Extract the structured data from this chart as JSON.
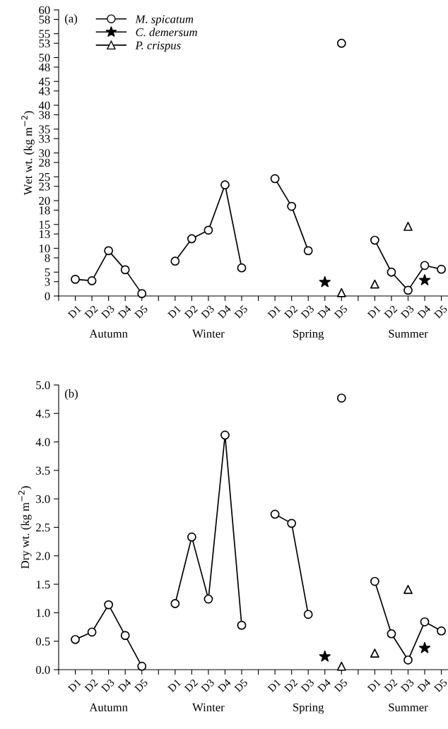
{
  "chart_data": [
    {
      "type": "line",
      "ylabel": "Wet wt. (kg m$^{−2}$)",
      "categories": [
        null,
        "D1",
        "D2",
        "D3",
        "D4",
        "D5",
        null,
        "D1",
        "D2",
        "D3",
        "D4",
        "D5",
        null,
        "D1",
        "D2",
        "D3",
        "D4",
        "D5",
        null,
        "D1",
        "D2",
        "D3",
        "D4",
        "D5"
      ],
      "series": [
        {
          "name": "M. spicatum",
          "color": "#000000",
          "marker": "circle",
          "values": [
            null,
            3.5,
            3.2,
            9.5,
            5.5,
            0.5,
            null,
            7.3,
            12,
            13.8,
            23.3,
            5.9,
            null,
            24.6,
            18.8,
            9.5,
            null,
            53,
            null,
            11.7,
            5,
            1.2,
            6.4,
            5.6
          ]
        },
        {
          "name": "C. demersum",
          "type": "scatter",
          "color": "#000000",
          "marker": "star",
          "values": [
            null,
            null,
            null,
            null,
            null,
            null,
            null,
            null,
            null,
            null,
            null,
            null,
            null,
            null,
            null,
            null,
            2.9,
            null,
            null,
            null,
            null,
            null,
            3.3,
            null
          ]
        },
        {
          "name": "P. crispus",
          "type": "scatter",
          "color": "#000000",
          "marker": "triangle",
          "values": [
            null,
            null,
            null,
            null,
            null,
            null,
            null,
            null,
            null,
            null,
            null,
            null,
            null,
            null,
            null,
            null,
            null,
            0.7,
            null,
            2.5,
            null,
            14.6,
            null,
            null
          ]
        }
      ],
      "ylim": [
        0,
        60
      ],
      "yticks": [
        0,
        3,
        5,
        8,
        10,
        13,
        15,
        18,
        20,
        23,
        25,
        28,
        30,
        33,
        35,
        38,
        40,
        43,
        45,
        48,
        50,
        53,
        55,
        58,
        60
      ],
      "legend": "top left",
      "grid": false,
      "annotations": [
        "(a)",
        "Autumn",
        "Winter",
        "Spring",
        "Summer"
      ]
    },
    {
      "type": "line",
      "ylabel": "Dry wt. (kg m$^{−2}$)",
      "categories": [
        null,
        "D1",
        "D2",
        "D3",
        "D4",
        "D5",
        null,
        "D1",
        "D2",
        "D3",
        "D4",
        "D5",
        null,
        "D1",
        "D2",
        "D3",
        "D4",
        "D5",
        null,
        "D1",
        "D2",
        "D3",
        "D4",
        "D5"
      ],
      "series": [
        {
          "color": "#000000",
          "marker": "circle",
          "values": [
            null,
            0.53,
            0.66,
            1.14,
            0.6,
            0.06,
            null,
            1.16,
            2.33,
            1.24,
            4.12,
            0.78,
            null,
            2.73,
            2.57,
            0.97,
            null,
            4.77,
            null,
            1.55,
            0.63,
            0.17,
            0.84,
            0.68
          ]
        },
        {
          "type": "scatter",
          "color": "#000000",
          "marker": "star",
          "values": [
            null,
            null,
            null,
            null,
            null,
            null,
            null,
            null,
            null,
            null,
            null,
            null,
            null,
            null,
            null,
            null,
            0.23,
            null,
            null,
            null,
            null,
            null,
            0.38,
            null
          ]
        },
        {
          "type": "scatter",
          "color": "#000000",
          "marker": "triangle",
          "values": [
            null,
            null,
            null,
            null,
            null,
            null,
            null,
            null,
            null,
            null,
            null,
            null,
            null,
            null,
            null,
            null,
            null,
            0.06,
            null,
            0.29,
            null,
            1.41,
            null,
            null
          ]
        }
      ],
      "ylim": [
        0,
        5
      ],
      "yticks": [
        {
          "value": 0,
          "label": "0.0"
        },
        {
          "value": 0.5,
          "label": "0.5"
        },
        {
          "value": 1,
          "label": "1.0"
        },
        {
          "value": 1.5,
          "label": "1.5"
        },
        {
          "value": 2,
          "label": "2.0"
        },
        {
          "value": 2.5,
          "label": "2.5"
        },
        {
          "value": 3,
          "label": "3.0"
        },
        {
          "value": 3.5,
          "label": "3.5"
        },
        {
          "value": 4,
          "label": "4.0"
        },
        {
          "value": 4.5,
          "label": "4.5"
        },
        {
          "value": 5,
          "label": "5.0"
        }
      ],
      "grid": false,
      "annotations": [
        "(b)",
        "Autumn",
        "Winter",
        "Spring",
        "Summer"
      ]
    }
  ]
}
